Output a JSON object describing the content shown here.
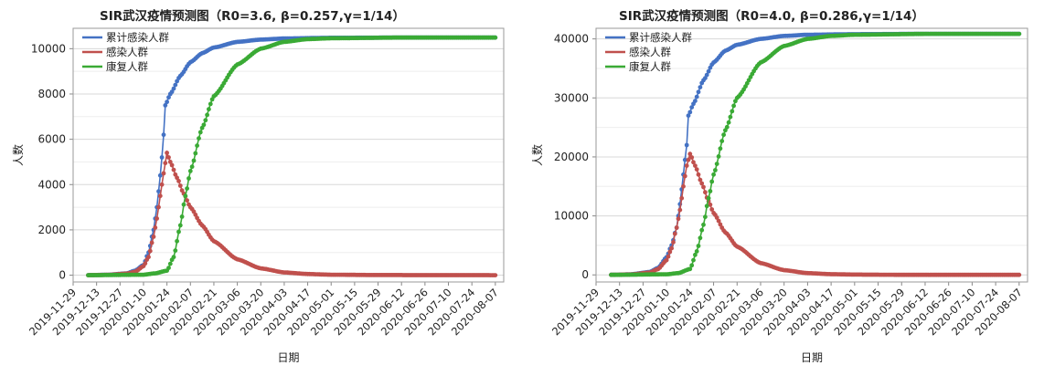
{
  "chart_data": [
    {
      "type": "line",
      "title": "SIR武汉疫情预测图（R0=3.6, β=0.257,γ=1/14）",
      "xlabel": "日期",
      "ylabel": "人数",
      "x_ticks": [
        "2019-11-29",
        "2019-12-13",
        "2019-12-27",
        "2020-01-10",
        "2020-01-24",
        "2020-02-07",
        "2020-02-21",
        "2020-03-06",
        "2020-03-20",
        "2020-04-03",
        "2020-04-17",
        "2020-05-01",
        "2020-05-15",
        "2020-05-29",
        "2020-06-12",
        "2020-06-26",
        "2020-07-10",
        "2020-07-24",
        "2020-08-07"
      ],
      "y_ticks": [
        0,
        2000,
        4000,
        6000,
        8000,
        10000
      ],
      "ylim": [
        -300,
        10900
      ],
      "xlim": [
        "2019-11-29",
        "2020-08-12"
      ],
      "grid": true,
      "legend_position": "top-left",
      "series": [
        {
          "name": "累计感染人群",
          "color": "#4472c4",
          "points": [
            [
              "2019-12-08",
              0
            ],
            [
              "2019-12-20",
              20
            ],
            [
              "2019-12-31",
              80
            ],
            [
              "2020-01-05",
              200
            ],
            [
              "2020-01-10",
              450
            ],
            [
              "2020-01-13",
              1000
            ],
            [
              "2020-01-16",
              2000
            ],
            [
              "2020-01-18",
              3000
            ],
            [
              "2020-01-19",
              3700
            ],
            [
              "2020-01-20",
              4400
            ],
            [
              "2020-01-21",
              5200
            ],
            [
              "2020-01-22",
              6200
            ],
            [
              "2020-01-23",
              7500
            ],
            [
              "2020-01-26",
              8000
            ],
            [
              "2020-02-01",
              8800
            ],
            [
              "2020-02-07",
              9400
            ],
            [
              "2020-02-14",
              9800
            ],
            [
              "2020-02-21",
              10050
            ],
            [
              "2020-03-06",
              10300
            ],
            [
              "2020-03-20",
              10400
            ],
            [
              "2020-04-03",
              10450
            ],
            [
              "2020-05-01",
              10480
            ],
            [
              "2020-06-12",
              10490
            ],
            [
              "2020-08-07",
              10490
            ]
          ]
        },
        {
          "name": "感染人群",
          "color": "#c0504d",
          "points": [
            [
              "2019-12-08",
              0
            ],
            [
              "2019-12-20",
              15
            ],
            [
              "2019-12-31",
              70
            ],
            [
              "2020-01-05",
              150
            ],
            [
              "2020-01-10",
              400
            ],
            [
              "2020-01-13",
              800
            ],
            [
              "2020-01-16",
              1700
            ],
            [
              "2020-01-18",
              2500
            ],
            [
              "2020-01-20",
              3500
            ],
            [
              "2020-01-22",
              4500
            ],
            [
              "2020-01-24",
              5400
            ],
            [
              "2020-01-26",
              5000
            ],
            [
              "2020-01-30",
              4300
            ],
            [
              "2020-02-03",
              3600
            ],
            [
              "2020-02-07",
              3000
            ],
            [
              "2020-02-14",
              2200
            ],
            [
              "2020-02-21",
              1500
            ],
            [
              "2020-03-06",
              700
            ],
            [
              "2020-03-20",
              300
            ],
            [
              "2020-04-03",
              120
            ],
            [
              "2020-04-17",
              50
            ],
            [
              "2020-05-01",
              20
            ],
            [
              "2020-05-29",
              5
            ],
            [
              "2020-08-07",
              0
            ]
          ]
        },
        {
          "name": "康复人群",
          "color": "#3aaa35",
          "points": [
            [
              "2019-12-08",
              0
            ],
            [
              "2020-01-10",
              20
            ],
            [
              "2020-01-17",
              80
            ],
            [
              "2020-01-24",
              200
            ],
            [
              "2020-01-28",
              800
            ],
            [
              "2020-02-01",
              2200
            ],
            [
              "2020-02-04",
              3500
            ],
            [
              "2020-02-07",
              4600
            ],
            [
              "2020-02-14",
              6500
            ],
            [
              "2020-02-21",
              7900
            ],
            [
              "2020-03-06",
              9300
            ],
            [
              "2020-03-20",
              10000
            ],
            [
              "2020-04-03",
              10300
            ],
            [
              "2020-04-17",
              10420
            ],
            [
              "2020-05-01",
              10460
            ],
            [
              "2020-06-12",
              10490
            ],
            [
              "2020-08-07",
              10490
            ]
          ]
        }
      ]
    },
    {
      "type": "line",
      "title": "SIR武汉疫情预测图（R0=4.0, β=0.286,γ=1/14）",
      "xlabel": "日期",
      "ylabel": "人数",
      "x_ticks": [
        "2019-11-29",
        "2019-12-13",
        "2019-12-27",
        "2020-01-10",
        "2020-01-24",
        "2020-02-07",
        "2020-02-21",
        "2020-03-06",
        "2020-03-20",
        "2020-04-03",
        "2020-04-17",
        "2020-05-01",
        "2020-05-15",
        "2020-05-29",
        "2020-06-12",
        "2020-06-26",
        "2020-07-10",
        "2020-07-24",
        "2020-08-07"
      ],
      "y_ticks": [
        0,
        10000,
        20000,
        30000,
        40000
      ],
      "ylim": [
        -1200,
        41800
      ],
      "xlim": [
        "2019-11-29",
        "2020-08-12"
      ],
      "grid": true,
      "legend_position": "top-left",
      "series": [
        {
          "name": "累计感染人群",
          "color": "#4472c4",
          "points": [
            [
              "2019-12-08",
              0
            ],
            [
              "2019-12-20",
              100
            ],
            [
              "2019-12-31",
              500
            ],
            [
              "2020-01-05",
              1200
            ],
            [
              "2020-01-10",
              3000
            ],
            [
              "2020-01-13",
              5000
            ],
            [
              "2020-01-16",
              8000
            ],
            [
              "2020-01-18",
              12000
            ],
            [
              "2020-01-20",
              17000
            ],
            [
              "2020-01-22",
              22000
            ],
            [
              "2020-01-23",
              27000
            ],
            [
              "2020-01-26",
              29000
            ],
            [
              "2020-02-01",
              33000
            ],
            [
              "2020-02-07",
              36000
            ],
            [
              "2020-02-14",
              38000
            ],
            [
              "2020-02-21",
              39000
            ],
            [
              "2020-03-06",
              40000
            ],
            [
              "2020-03-20",
              40500
            ],
            [
              "2020-04-03",
              40700
            ],
            [
              "2020-05-01",
              40800
            ],
            [
              "2020-06-12",
              40850
            ],
            [
              "2020-08-07",
              40850
            ]
          ]
        },
        {
          "name": "感染人群",
          "color": "#c0504d",
          "points": [
            [
              "2019-12-08",
              0
            ],
            [
              "2019-12-20",
              80
            ],
            [
              "2019-12-31",
              400
            ],
            [
              "2020-01-05",
              1000
            ],
            [
              "2020-01-10",
              2500
            ],
            [
              "2020-01-13",
              4500
            ],
            [
              "2020-01-16",
              8000
            ],
            [
              "2020-01-18",
              11000
            ],
            [
              "2020-01-20",
              15000
            ],
            [
              "2020-01-22",
              18500
            ],
            [
              "2020-01-24",
              20500
            ],
            [
              "2020-01-27",
              18500
            ],
            [
              "2020-01-31",
              15500
            ],
            [
              "2020-02-04",
              12500
            ],
            [
              "2020-02-07",
              10500
            ],
            [
              "2020-02-14",
              7200
            ],
            [
              "2020-02-21",
              4800
            ],
            [
              "2020-03-06",
              2000
            ],
            [
              "2020-03-20",
              800
            ],
            [
              "2020-04-03",
              300
            ],
            [
              "2020-04-17",
              120
            ],
            [
              "2020-05-01",
              50
            ],
            [
              "2020-05-29",
              10
            ],
            [
              "2020-08-07",
              0
            ]
          ]
        },
        {
          "name": "康复人群",
          "color": "#3aaa35",
          "points": [
            [
              "2019-12-08",
              0
            ],
            [
              "2020-01-10",
              100
            ],
            [
              "2020-01-17",
              300
            ],
            [
              "2020-01-24",
              1000
            ],
            [
              "2020-01-28",
              4000
            ],
            [
              "2020-02-01",
              8500
            ],
            [
              "2020-02-04",
              13000
            ],
            [
              "2020-02-07",
              17000
            ],
            [
              "2020-02-14",
              24500
            ],
            [
              "2020-02-21",
              30000
            ],
            [
              "2020-03-06",
              36000
            ],
            [
              "2020-03-20",
              38800
            ],
            [
              "2020-04-03",
              40000
            ],
            [
              "2020-04-17",
              40500
            ],
            [
              "2020-05-01",
              40700
            ],
            [
              "2020-06-12",
              40850
            ],
            [
              "2020-08-07",
              40850
            ]
          ]
        }
      ]
    }
  ]
}
